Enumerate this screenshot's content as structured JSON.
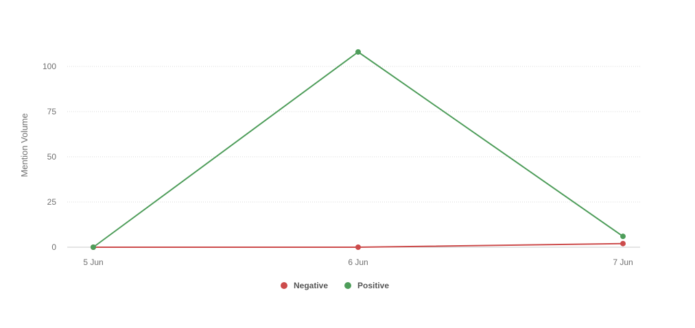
{
  "chart_data": {
    "type": "line",
    "title": "",
    "xlabel": "",
    "ylabel": "Mention Volume",
    "categories": [
      "5 Jun",
      "6 Jun",
      "7 Jun"
    ],
    "ylim": [
      0,
      110
    ],
    "yticks": [
      0,
      25,
      50,
      75,
      100
    ],
    "grid": true,
    "legend_position": "bottom-center",
    "series": [
      {
        "name": "Negative",
        "color": "#cc4b4b",
        "values": [
          0,
          0,
          2
        ]
      },
      {
        "name": "Positive",
        "color": "#4e9d5a",
        "values": [
          0,
          108,
          6
        ]
      }
    ]
  }
}
